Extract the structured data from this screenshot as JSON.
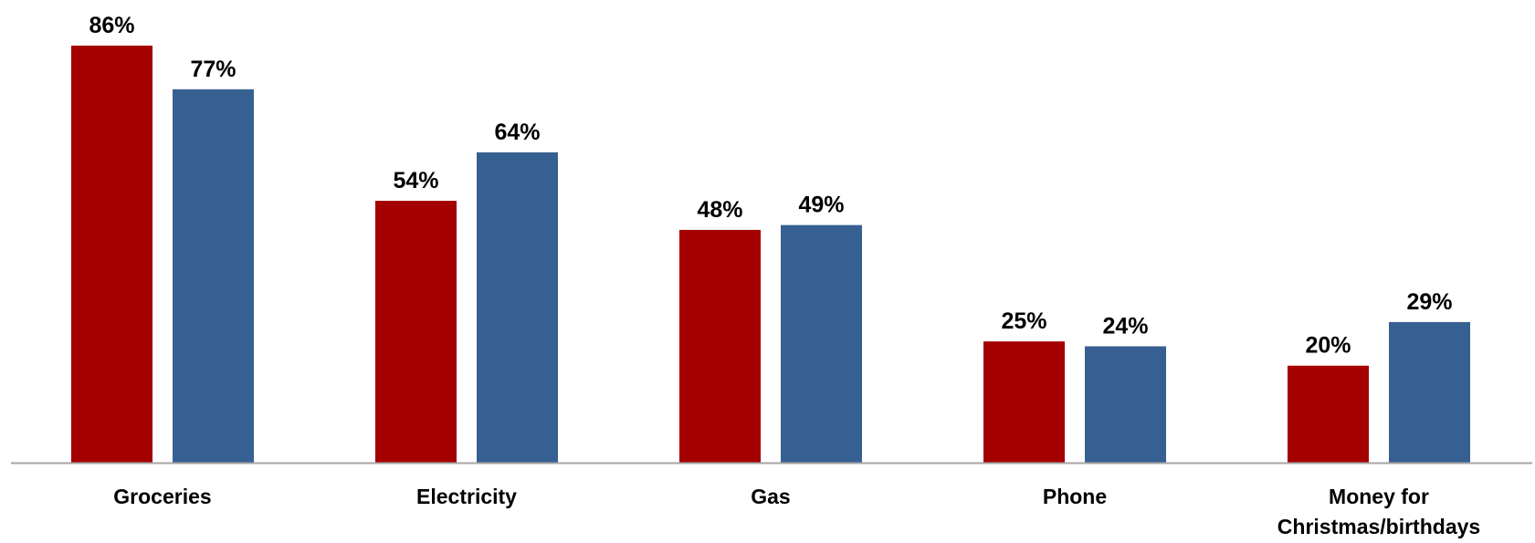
{
  "chart_data": {
    "type": "bar",
    "title": "",
    "xlabel": "",
    "ylabel": "",
    "ylim": [
      0,
      90
    ],
    "grid": false,
    "legend": "none",
    "categories": [
      [
        "Groceries"
      ],
      [
        "Electricity"
      ],
      [
        "Gas"
      ],
      [
        "Phone"
      ],
      [
        "Money for",
        "Christmas/birthdays"
      ]
    ],
    "series": [
      {
        "values": [
          86,
          54,
          48,
          25,
          20
        ],
        "color": "#a50000",
        "labels": [
          "86%",
          "54%",
          "48%",
          "25%",
          "20%"
        ]
      },
      {
        "values": [
          77,
          64,
          49,
          24,
          29
        ],
        "color": "#376092",
        "labels": [
          "77%",
          "64%",
          "49%",
          "24%",
          "29%"
        ]
      }
    ],
    "axis_color": "#a6a6a6"
  }
}
